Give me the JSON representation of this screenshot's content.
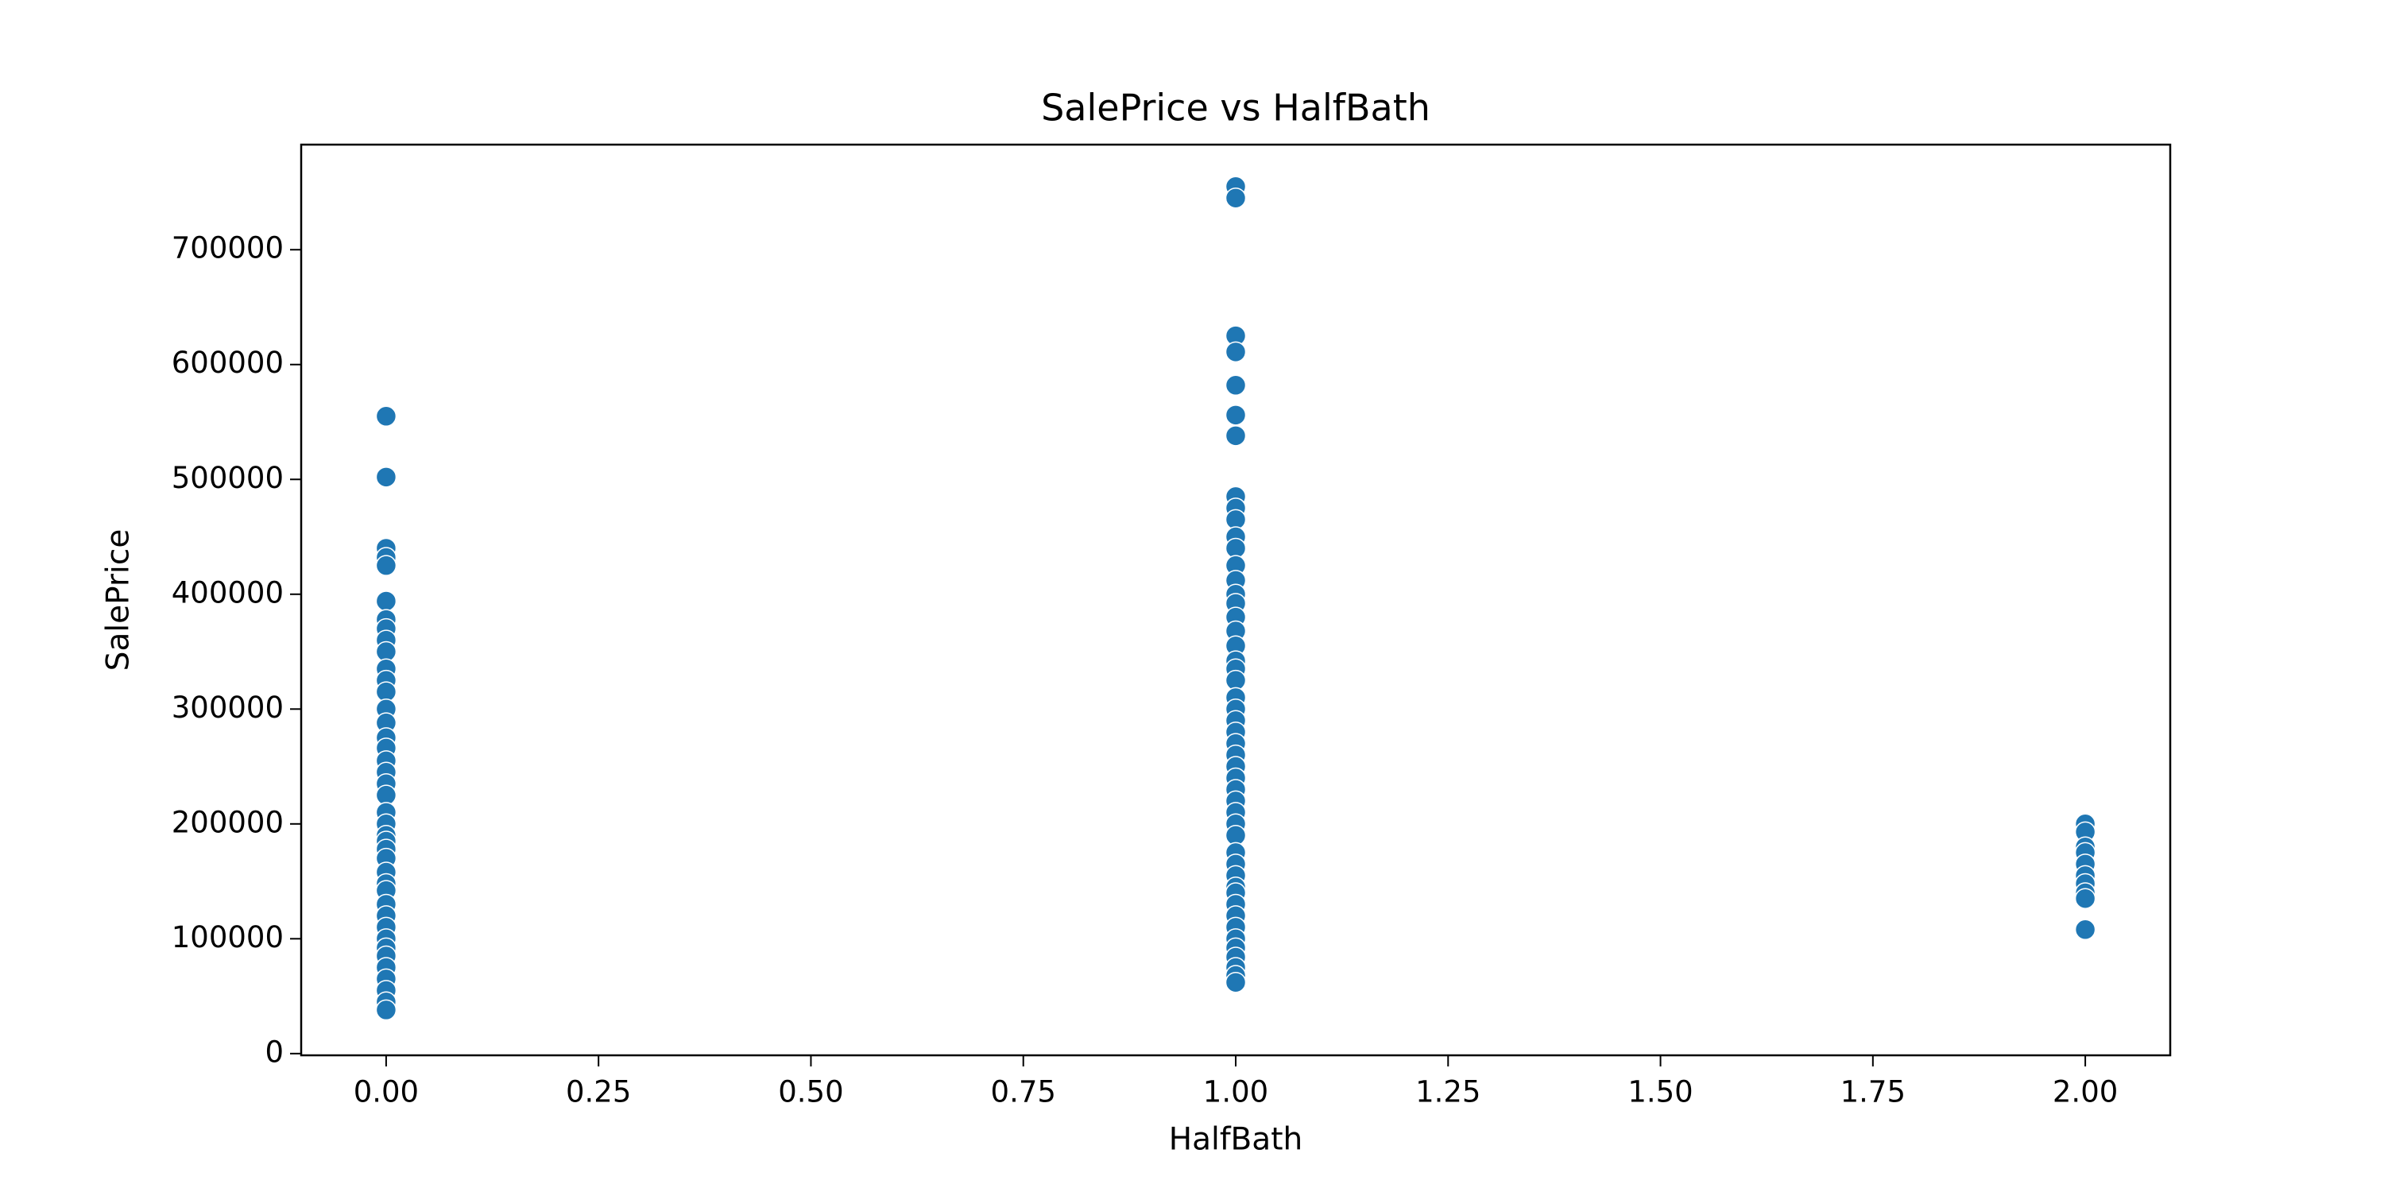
{
  "chart_data": {
    "type": "scatter",
    "title": "SalePrice vs HalfBath",
    "x_label": "HalfBath",
    "y_label": "SalePrice",
    "series": [
      {
        "color": "#1f77b4",
        "x": [
          0,
          0,
          0,
          0,
          0,
          0,
          0,
          0,
          0,
          0,
          0,
          0,
          0,
          0,
          0,
          0,
          0,
          0,
          0,
          0,
          0,
          0,
          0,
          0,
          0,
          0,
          0,
          0,
          0,
          0,
          0,
          0,
          0,
          0,
          0,
          0,
          0,
          0,
          0,
          0,
          0,
          1,
          1,
          1,
          1,
          1,
          1,
          1,
          1,
          1,
          1,
          1,
          1,
          1,
          1,
          1,
          1,
          1,
          1,
          1,
          1,
          1,
          1,
          1,
          1,
          1,
          1,
          1,
          1,
          1,
          1,
          1,
          1,
          1,
          1,
          1,
          1,
          1,
          1,
          1,
          1,
          1,
          1,
          1,
          1,
          1,
          1,
          1,
          1,
          1,
          2,
          2,
          2,
          2,
          2,
          2,
          2,
          2,
          2,
          2
        ],
        "values": [
          555000,
          502000,
          440000,
          432000,
          425000,
          394000,
          378000,
          370000,
          360000,
          350000,
          335000,
          325000,
          315000,
          300000,
          288000,
          275000,
          266000,
          255000,
          245000,
          235000,
          225000,
          210000,
          200000,
          190000,
          185000,
          178000,
          170000,
          158000,
          148000,
          142000,
          130000,
          120000,
          110000,
          100000,
          92000,
          85000,
          75000,
          65000,
          55000,
          45000,
          38000,
          755000,
          745000,
          625000,
          611000,
          582000,
          556000,
          538000,
          485000,
          475000,
          465000,
          450000,
          440000,
          425000,
          412000,
          400000,
          392000,
          380000,
          368000,
          355000,
          342000,
          335000,
          325000,
          310000,
          300000,
          290000,
          280000,
          270000,
          260000,
          250000,
          240000,
          230000,
          220000,
          210000,
          200000,
          190000,
          175000,
          165000,
          155000,
          145000,
          140000,
          130000,
          120000,
          110000,
          100000,
          92000,
          84000,
          75000,
          68000,
          62000,
          200000,
          193000,
          180000,
          175000,
          165000,
          155000,
          148000,
          140000,
          135000,
          108000
        ]
      }
    ],
    "xlim": [
      -0.1,
      2.1
    ],
    "xticks": [
      {
        "value": 0,
        "label": "0.00"
      },
      {
        "value": 0.25,
        "label": "0.25"
      },
      {
        "value": 0.5,
        "label": "0.50"
      },
      {
        "value": 0.75,
        "label": "0.75"
      },
      {
        "value": 1,
        "label": "1.00"
      },
      {
        "value": 1.25,
        "label": "1.25"
      },
      {
        "value": 1.5,
        "label": "1.50"
      },
      {
        "value": 1.75,
        "label": "1.75"
      },
      {
        "value": 2,
        "label": "2.00"
      }
    ],
    "ylim": [
      -1500,
      791500
    ],
    "yticks": [
      0,
      100000,
      200000,
      300000,
      400000,
      500000,
      600000,
      700000
    ],
    "grid": false
  }
}
